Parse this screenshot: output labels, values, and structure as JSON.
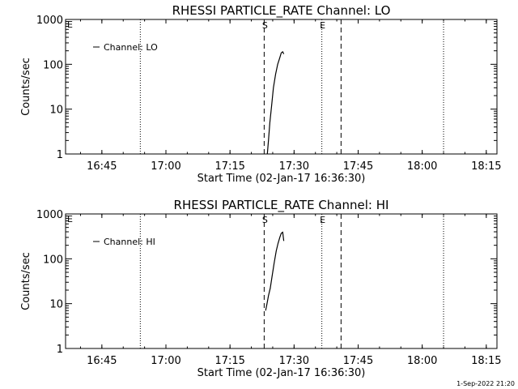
{
  "footer_timestamp": "1-Sep-2022 21:20",
  "chart_data": [
    {
      "type": "line",
      "title": "RHESSI PARTICLE_RATE Channel: LO",
      "xlabel": "Start Time (02-Jan-17 16:36:30)",
      "ylabel": "Counts/sec",
      "yscale": "log",
      "xlim": [
        "16:36:30",
        "18:17:30"
      ],
      "ylim": [
        1,
        1000
      ],
      "xticks": [
        "16:45",
        "17:00",
        "17:15",
        "17:30",
        "17:45",
        "18:00",
        "18:15"
      ],
      "yticks": [
        "1",
        "10",
        "100",
        "1000"
      ],
      "legend": {
        "placement": "top-left",
        "entries": [
          "Channel: LO"
        ]
      },
      "vlines_dotted": [
        "16:54:00",
        "17:36:30",
        "18:05:00"
      ],
      "vlines_dashed": [
        "17:23:00",
        "17:41:00"
      ],
      "markers": [
        {
          "label": "S",
          "x": "17:23:00"
        },
        {
          "label": "E",
          "x": "17:36:30"
        }
      ],
      "series": [
        {
          "name": "Channel: LO",
          "x": [
            "17:23:45",
            "17:24:00",
            "17:24:20",
            "17:24:45",
            "17:25:10",
            "17:25:40",
            "17:26:10",
            "17:26:40",
            "17:27:00",
            "17:27:20",
            "17:27:35"
          ],
          "y": [
            1,
            2,
            5,
            12,
            30,
            60,
            100,
            140,
            180,
            190,
            170
          ]
        }
      ]
    },
    {
      "type": "line",
      "title": "RHESSI PARTICLE_RATE Channel: HI",
      "xlabel": "Start Time (02-Jan-17 16:36:30)",
      "ylabel": "Counts/sec",
      "yscale": "log",
      "xlim": [
        "16:36:30",
        "18:17:30"
      ],
      "ylim": [
        1,
        1000
      ],
      "xticks": [
        "16:45",
        "17:00",
        "17:15",
        "17:30",
        "17:45",
        "18:00",
        "18:15"
      ],
      "yticks": [
        "1",
        "10",
        "100",
        "1000"
      ],
      "legend": {
        "placement": "top-left",
        "entries": [
          "Channel: HI"
        ]
      },
      "vlines_dotted": [
        "16:54:00",
        "17:36:30",
        "18:05:00"
      ],
      "vlines_dashed": [
        "17:23:00",
        "17:41:00"
      ],
      "markers": [
        {
          "label": "S",
          "x": "17:23:00"
        },
        {
          "label": "E",
          "x": "17:36:30"
        }
      ],
      "series": [
        {
          "name": "Channel: HI",
          "x": [
            "17:23:20",
            "17:23:40",
            "17:24:00",
            "17:24:25",
            "17:24:50",
            "17:25:20",
            "17:25:50",
            "17:26:15",
            "17:26:40",
            "17:27:00",
            "17:27:20",
            "17:27:35"
          ],
          "y": [
            7,
            10,
            15,
            22,
            40,
            80,
            150,
            220,
            300,
            370,
            390,
            250
          ]
        }
      ]
    }
  ]
}
